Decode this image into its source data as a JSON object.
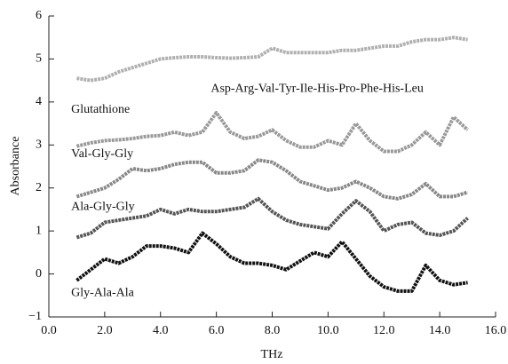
{
  "chart_data": {
    "type": "line",
    "xlabel": "THz",
    "ylabel": "Absorbance",
    "x": [
      1.0,
      1.5,
      2.0,
      2.5,
      3.0,
      3.5,
      4.0,
      4.5,
      5.0,
      5.5,
      6.0,
      6.5,
      7.0,
      7.5,
      8.0,
      8.5,
      9.0,
      9.5,
      10.0,
      10.5,
      11.0,
      11.5,
      12.0,
      12.5,
      13.0,
      13.5,
      14.0,
      14.5,
      15.0
    ],
    "series": [
      {
        "name": "Asp-Arg-Val-Tyr-Ile-His-Pro-Phe-His-Leu",
        "color": "#b0b0b0",
        "values": [
          4.55,
          4.5,
          4.55,
          4.7,
          4.8,
          4.9,
          5.0,
          5.03,
          5.05,
          5.05,
          5.03,
          5.02,
          5.03,
          5.05,
          5.25,
          5.15,
          5.15,
          5.15,
          5.15,
          5.2,
          5.2,
          5.25,
          5.3,
          5.3,
          5.4,
          5.45,
          5.45,
          5.5,
          5.45
        ]
      },
      {
        "name": "Glutathione",
        "color": "#999999",
        "values": [
          2.97,
          3.05,
          3.1,
          3.12,
          3.15,
          3.2,
          3.22,
          3.3,
          3.22,
          3.3,
          3.75,
          3.3,
          3.15,
          3.2,
          3.35,
          3.1,
          2.95,
          2.95,
          3.1,
          3.0,
          3.5,
          3.1,
          2.85,
          2.85,
          3.0,
          3.3,
          3.0,
          3.65,
          3.35
        ]
      },
      {
        "name": "Val-Gly-Gly",
        "color": "#888888",
        "values": [
          1.8,
          1.9,
          2.0,
          2.2,
          2.45,
          2.4,
          2.45,
          2.55,
          2.6,
          2.6,
          2.35,
          2.35,
          2.4,
          2.65,
          2.6,
          2.4,
          2.15,
          2.05,
          1.95,
          2.0,
          2.15,
          2.0,
          1.8,
          1.75,
          1.85,
          2.1,
          1.8,
          1.8,
          1.9
        ]
      },
      {
        "name": "Ala-Gly-Gly",
        "color": "#555555",
        "values": [
          0.85,
          0.95,
          1.2,
          1.25,
          1.3,
          1.35,
          1.5,
          1.4,
          1.5,
          1.45,
          1.45,
          1.5,
          1.55,
          1.75,
          1.45,
          1.25,
          1.15,
          1.1,
          1.05,
          1.4,
          1.7,
          1.45,
          1.0,
          1.15,
          1.2,
          0.95,
          0.9,
          1.0,
          1.3
        ]
      },
      {
        "name": "Gly-Ala-Ala",
        "color": "#111111",
        "values": [
          -0.15,
          0.1,
          0.35,
          0.25,
          0.4,
          0.65,
          0.65,
          0.6,
          0.5,
          0.95,
          0.7,
          0.4,
          0.25,
          0.25,
          0.2,
          0.1,
          0.3,
          0.5,
          0.4,
          0.75,
          0.35,
          -0.05,
          -0.3,
          -0.4,
          -0.4,
          0.2,
          -0.15,
          -0.25,
          -0.2
        ]
      }
    ],
    "xlim": [
      0,
      16
    ],
    "xticks": [
      {
        "value": 0,
        "label": "0.0"
      },
      {
        "value": 2,
        "label": "2.0"
      },
      {
        "value": 4,
        "label": "4.0"
      },
      {
        "value": 6,
        "label": "6.0"
      },
      {
        "value": 8,
        "label": "8.0"
      },
      {
        "value": 10,
        "label": "10.0"
      },
      {
        "value": 12,
        "label": "12.0"
      },
      {
        "value": 14,
        "label": "14.0"
      },
      {
        "value": 16,
        "label": "16.0"
      }
    ],
    "ylim": [
      -1,
      6
    ],
    "yticks": [
      {
        "value": -1,
        "label": "−1"
      },
      0,
      1,
      2,
      3,
      4,
      5,
      6
    ],
    "grid": false
  }
}
